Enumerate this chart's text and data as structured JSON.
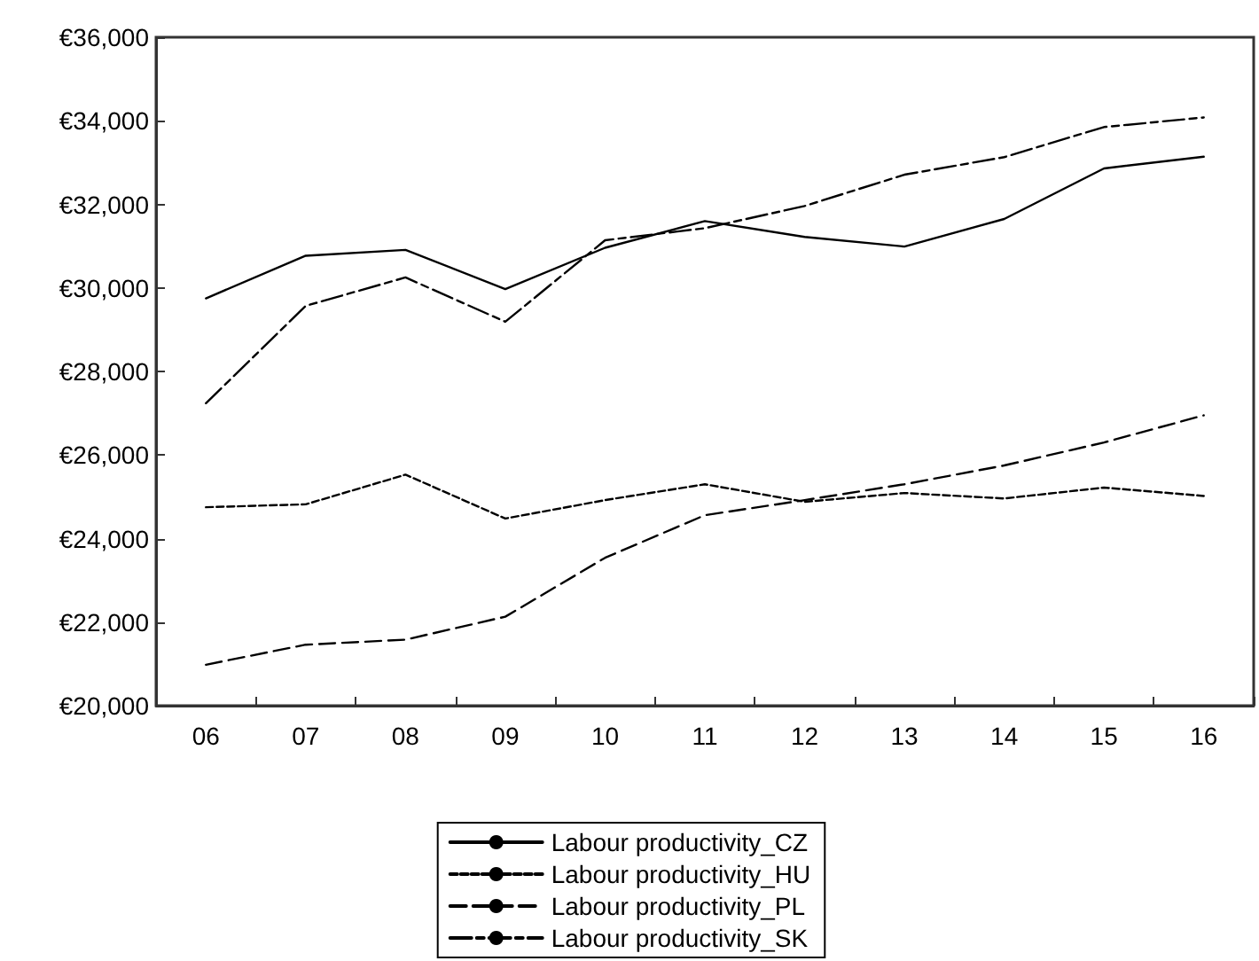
{
  "chart_data": {
    "type": "line",
    "categories": [
      "06",
      "07",
      "08",
      "09",
      "10",
      "11",
      "12",
      "13",
      "14",
      "15",
      "16"
    ],
    "series": [
      {
        "name": "Labour productivity_CZ",
        "color": "#000000",
        "line_style": "solid",
        "values": [
          29750,
          30770,
          30910,
          29970,
          30960,
          31600,
          31220,
          30990,
          31650,
          32860,
          33140
        ]
      },
      {
        "name": "Labour productivity_HU",
        "color": "#000000",
        "line_style": "dotted",
        "values": [
          24750,
          24820,
          25530,
          24480,
          24920,
          25300,
          24880,
          25090,
          24960,
          25220,
          25020
        ]
      },
      {
        "name": "Labour productivity_PL",
        "color": "#000000",
        "line_style": "dashed",
        "values": [
          20980,
          21460,
          21580,
          22130,
          23540,
          24560,
          24920,
          25300,
          25750,
          26300,
          26950
        ]
      },
      {
        "name": "Labour productivity_SK",
        "color": "#000000",
        "line_style": "dashdot",
        "values": [
          27240,
          29570,
          30250,
          29190,
          31140,
          31430,
          31960,
          32710,
          33130,
          33850,
          34080
        ]
      }
    ],
    "ylim": [
      20000,
      36000
    ],
    "yticks": [
      {
        "value": 20000,
        "label": "€20,000"
      },
      {
        "value": 22000,
        "label": "€22,000"
      },
      {
        "value": 24000,
        "label": "€24,000"
      },
      {
        "value": 26000,
        "label": "€26,000"
      },
      {
        "value": 28000,
        "label": "€28,000"
      },
      {
        "value": 30000,
        "label": "€30,000"
      },
      {
        "value": 32000,
        "label": "€32,000"
      },
      {
        "value": 34000,
        "label": "€34,000"
      },
      {
        "value": 36000,
        "label": "€36,000"
      }
    ],
    "grid": false,
    "legend": "bottom",
    "marker": "none"
  }
}
